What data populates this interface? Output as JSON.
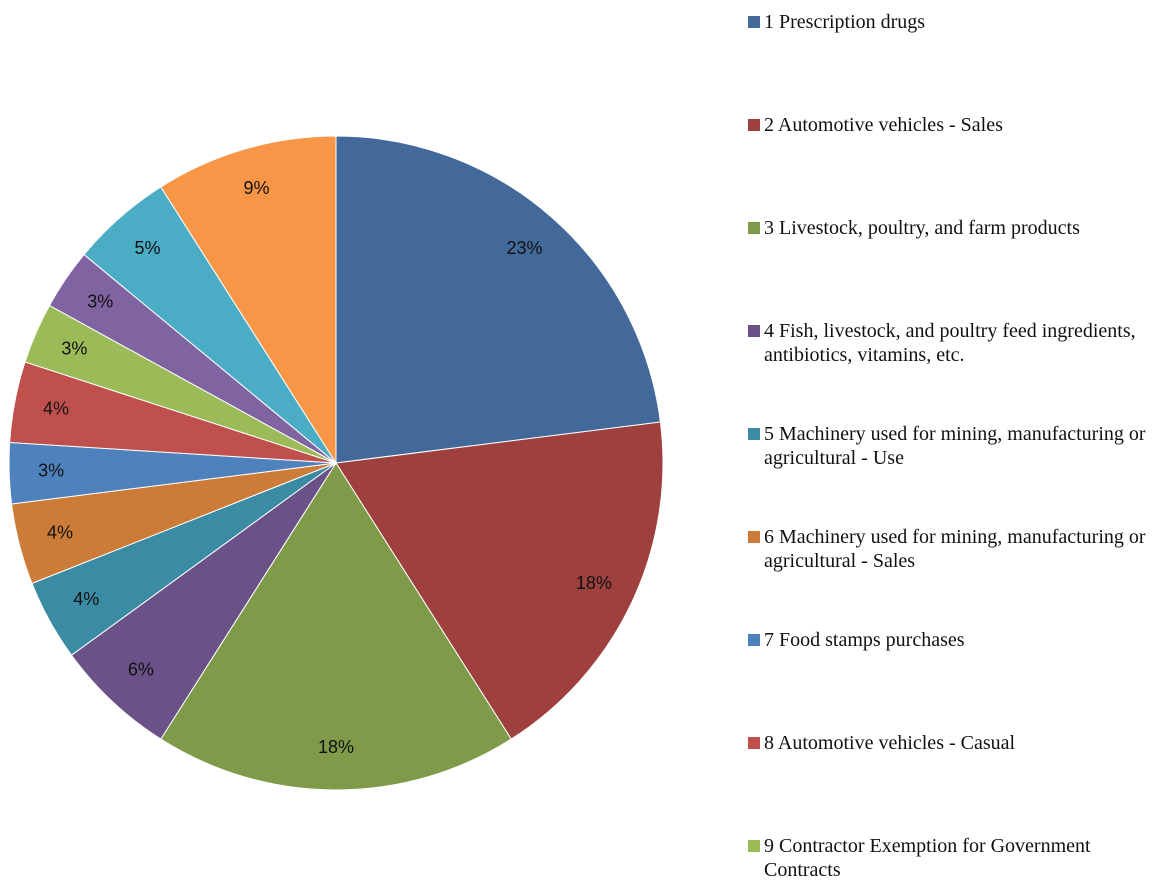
{
  "chart_data": {
    "type": "pie",
    "categories": [
      "1 Prescription drugs",
      "2 Automotive vehicles - Sales",
      "3 Livestock, poultry, and farm products",
      "4 Fish, livestock, and poultry feed ingredients, antibiotics, vitamins, etc.",
      "5 Machinery used for mining, manufacturing or agricultural - Use",
      "6 Machinery used for mining, manufacturing or agricultural - Sales",
      "7 Food stamps purchases",
      "8 Automotive vehicles - Casual",
      "9 Contractor Exemption for Government Contracts",
      null,
      null,
      null
    ],
    "values": [
      23,
      18,
      18,
      6,
      4,
      4,
      3,
      4,
      3,
      3,
      5,
      9
    ],
    "value_labels": [
      "23%",
      "18%",
      "18%",
      "6%",
      "4%",
      "4%",
      "3%",
      "4%",
      "3%",
      "3%",
      "5%",
      "9%"
    ],
    "colors": [
      "#43699b",
      "#9e403e",
      "#7f9a48",
      "#6a5289",
      "#3a8ba3",
      "#cd7b38",
      "#4f81bd",
      "#c0504d",
      "#9bbb59",
      "#8064a2",
      "#4bacc6",
      "#f79646"
    ]
  }
}
